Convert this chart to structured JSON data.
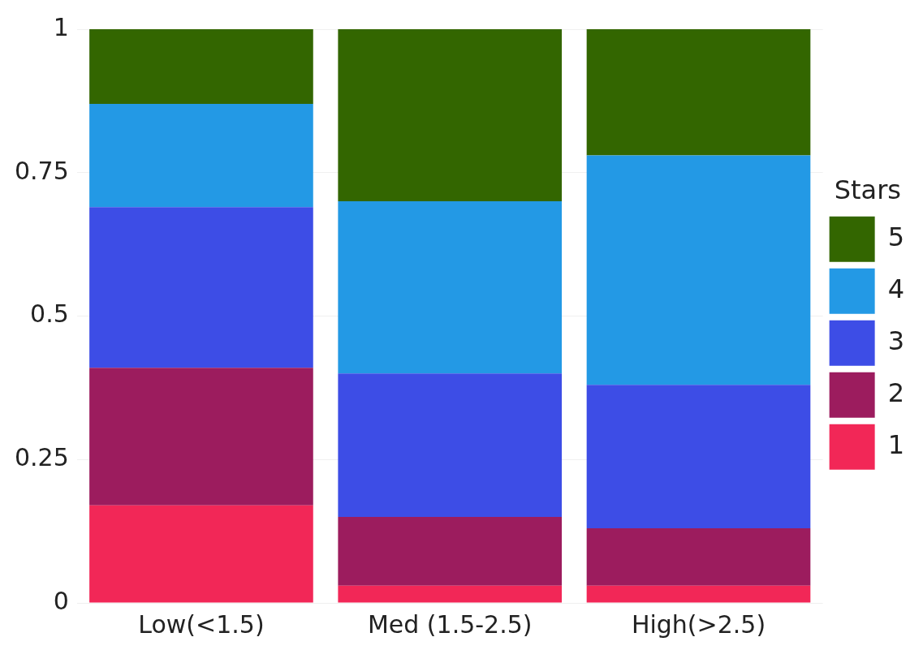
{
  "chart_data": {
    "type": "bar",
    "stacked": true,
    "categories": [
      "Low(<1.5)",
      "Med (1.5-2.5)",
      "High(>2.5)"
    ],
    "series": [
      {
        "name": "1",
        "color": "#f22757",
        "values": [
          0.17,
          0.03,
          0.03
        ]
      },
      {
        "name": "2",
        "color": "#9c1c5e",
        "values": [
          0.24,
          0.12,
          0.1
        ]
      },
      {
        "name": "3",
        "color": "#3d4de6",
        "values": [
          0.28,
          0.25,
          0.25
        ]
      },
      {
        "name": "4",
        "color": "#2399e5",
        "values": [
          0.18,
          0.3,
          0.4
        ]
      },
      {
        "name": "5",
        "color": "#336600",
        "values": [
          0.13,
          0.3,
          0.22
        ]
      }
    ],
    "ylim": [
      0,
      1
    ],
    "yticks": [
      0,
      0.25,
      0.5,
      0.75,
      1
    ],
    "grid": "y",
    "legend": "right",
    "legend_title": "Stars"
  }
}
